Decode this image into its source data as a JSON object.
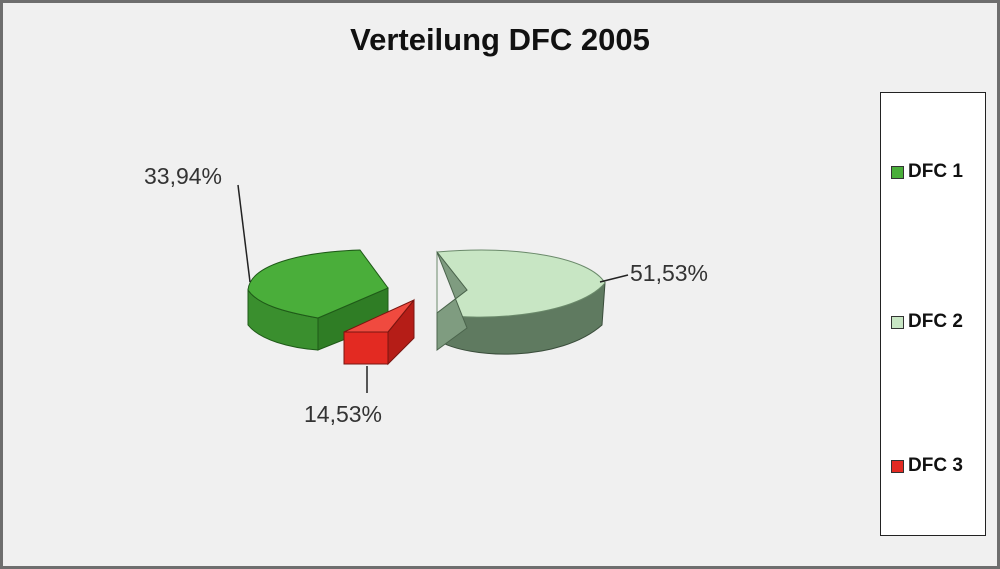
{
  "chart_data": {
    "type": "pie",
    "title": "Verteilung DFC 2005",
    "categories": [
      "DFC 1",
      "DFC 2",
      "DFC 3"
    ],
    "values": [
      33.94,
      51.53,
      14.53
    ],
    "value_labels": [
      "33,94%",
      "51,53%",
      "14,53%"
    ],
    "colors": [
      "#4aae3a",
      "#c8e6c4",
      "#e32a22"
    ],
    "exploded": true,
    "three_d": true,
    "legend": "right"
  }
}
